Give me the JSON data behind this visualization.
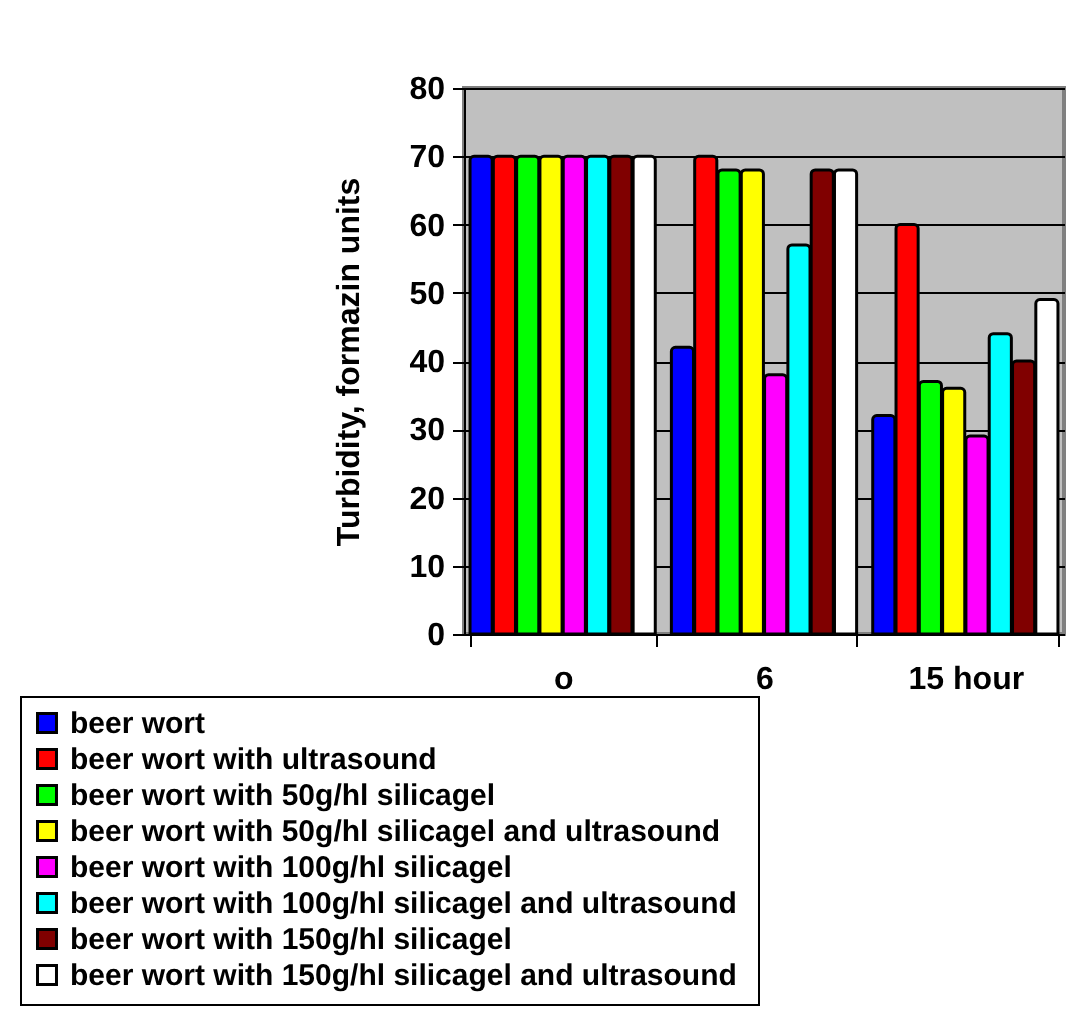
{
  "chart_data": {
    "type": "bar",
    "ylabel": "Turbidity, formazin units",
    "categories": [
      "o",
      "6",
      "15 hour"
    ],
    "series": [
      {
        "name": "beer wort",
        "color": "#0000ff",
        "values": [
          70,
          42,
          32
        ]
      },
      {
        "name": "beer wort with ultrasound",
        "color": "#ff0000",
        "values": [
          70,
          70,
          60
        ]
      },
      {
        "name": "beer wort with 50g/hl silicagel",
        "color": "#00ff00",
        "values": [
          70,
          68,
          37
        ]
      },
      {
        "name": "beer wort with 50g/hl silicagel  and ultrasound",
        "color": "#ffff00",
        "values": [
          70,
          68,
          36
        ]
      },
      {
        "name": "beer wort with 100g/hl silicagel",
        "color": "#ff00ff",
        "values": [
          70,
          38,
          29
        ]
      },
      {
        "name": "beer wort with 100g/hl silicagel  and ultrasound",
        "color": "#00ffff",
        "values": [
          70,
          57,
          44
        ]
      },
      {
        "name": "beer wort with 150g/hl silicagel",
        "color": "#800000",
        "values": [
          70,
          68,
          40
        ]
      },
      {
        "name": "beer wort with 150g/hl silicagel and ultrasound",
        "color": "#ffffff",
        "values": [
          70,
          68,
          49
        ]
      }
    ],
    "ylim": [
      0,
      80
    ],
    "yticks": [
      0,
      10,
      20,
      30,
      40,
      50,
      60,
      70,
      80
    ],
    "grid": "y",
    "legend": "bottom"
  }
}
